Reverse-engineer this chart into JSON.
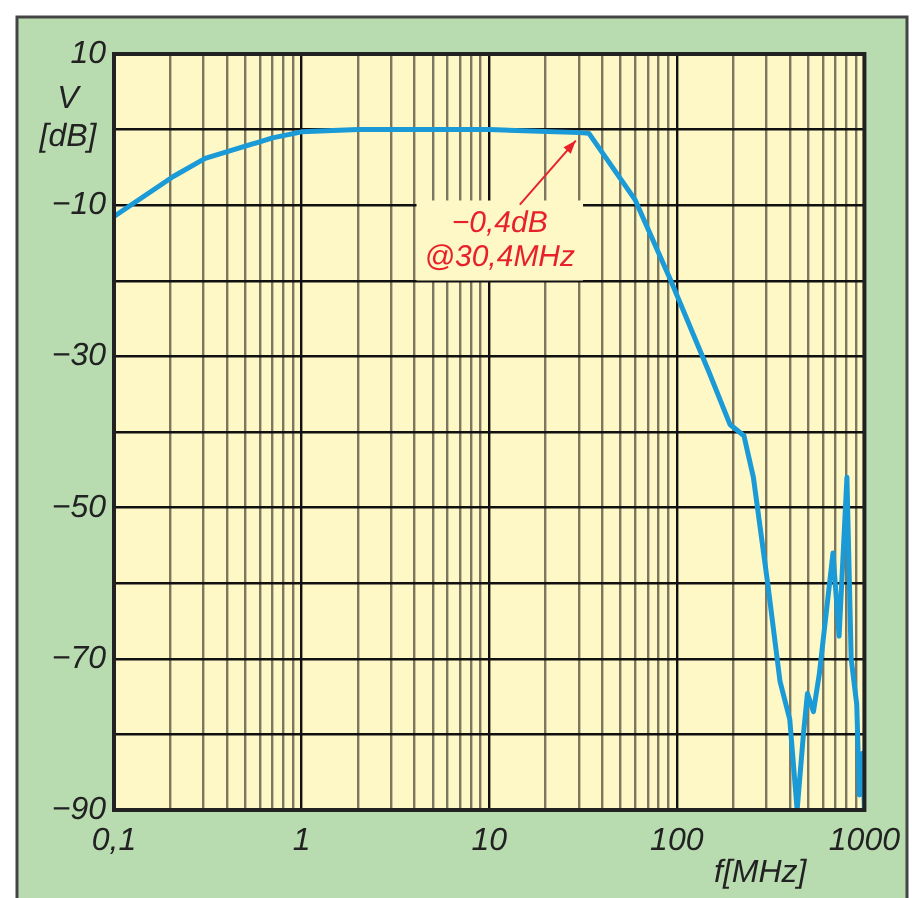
{
  "chart_data": {
    "type": "line",
    "ylabel": "V [dB]",
    "xlabel": "f[MHz]",
    "log": "x",
    "grid": true,
    "legend": false,
    "marker": "none",
    "line_style": "solid",
    "xlim": [
      0.1,
      1000
    ],
    "ylim": [
      -90,
      10
    ],
    "xticks": [
      {
        "value": 0.1,
        "label": "0,1"
      },
      {
        "value": 0.2,
        "label": null
      },
      {
        "value": 0.3,
        "label": null
      },
      {
        "value": 0.4,
        "label": null
      },
      {
        "value": 0.5,
        "label": null
      },
      {
        "value": 0.6,
        "label": null
      },
      {
        "value": 0.7,
        "label": null
      },
      {
        "value": 0.8,
        "label": null
      },
      {
        "value": 0.9,
        "label": null
      },
      1,
      {
        "value": 2,
        "label": null
      },
      {
        "value": 3,
        "label": null
      },
      {
        "value": 4,
        "label": null
      },
      {
        "value": 5,
        "label": null
      },
      {
        "value": 6,
        "label": null
      },
      {
        "value": 7,
        "label": null
      },
      {
        "value": 8,
        "label": null
      },
      {
        "value": 9,
        "label": null
      },
      10,
      {
        "value": 20,
        "label": null
      },
      {
        "value": 30,
        "label": null
      },
      {
        "value": 40,
        "label": null
      },
      {
        "value": 50,
        "label": null
      },
      {
        "value": 60,
        "label": null
      },
      {
        "value": 70,
        "label": null
      },
      {
        "value": 80,
        "label": null
      },
      {
        "value": 90,
        "label": null
      },
      100,
      {
        "value": 200,
        "label": null
      },
      {
        "value": 300,
        "label": null
      },
      {
        "value": 400,
        "label": null
      },
      {
        "value": 500,
        "label": null
      },
      {
        "value": 600,
        "label": null
      },
      {
        "value": 700,
        "label": null
      },
      {
        "value": 800,
        "label": null
      },
      {
        "value": 900,
        "label": null
      },
      1000
    ],
    "yticks": [
      10,
      {
        "value": 0,
        "label": null
      },
      {
        "value": -10,
        "label": "−10"
      },
      {
        "value": -20,
        "label": null
      },
      {
        "value": -30,
        "label": "−30"
      },
      {
        "value": -40,
        "label": null
      },
      {
        "value": -50,
        "label": "−50"
      },
      {
        "value": -60,
        "label": null
      },
      {
        "value": -70,
        "label": "−70"
      },
      {
        "value": -80,
        "label": null
      },
      {
        "value": -90,
        "label": "−90"
      }
    ],
    "annotations": [
      {
        "text": "−0,4dB\n@30,4MHz",
        "x": 30.4,
        "y": -0.4
      }
    ],
    "series": [
      {
        "color": "#1a9ad6",
        "x": [
          0.1,
          0.207,
          0.306,
          0.7,
          1,
          2,
          10,
          30.4,
          34,
          60,
          93,
          148,
          192,
          228,
          256,
          305,
          355,
          400,
          438,
          473,
          497,
          535,
          575,
          680,
          733,
          807,
          850,
          910,
          940,
          980,
          1000
        ],
        "values": [
          -11.5,
          -6.2,
          -3.8,
          -1.1,
          -0.3,
          0,
          0,
          -0.4,
          -0.5,
          -9.3,
          -20,
          -32,
          -39,
          -40.5,
          -46,
          -60,
          -73,
          -78,
          -90,
          -80,
          -74.6,
          -77,
          -72,
          -56,
          -67,
          -46,
          -70,
          -76,
          -88,
          -82.5,
          -90
        ]
      }
    ]
  }
}
